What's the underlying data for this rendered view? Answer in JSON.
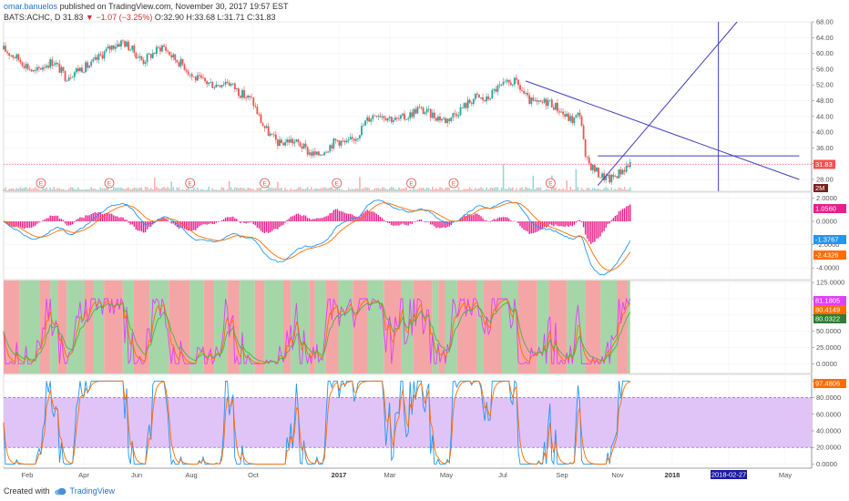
{
  "header": {
    "author": "omar.banuelos",
    "published": "published on TradingView.com, November 30, 2017 19:57 EST",
    "symbol": "BATS:ACHC, D",
    "last": "31.83",
    "change": "−1.07 (−3.25%)",
    "ohlc": "O:32.90 H:33.68 L:31.71 C:31.83"
  },
  "footer": {
    "created_with": "Created with",
    "brand": "TradingView"
  },
  "colors": {
    "up": "#26a69a",
    "down": "#ef5350",
    "trend": "#3f3fbf",
    "macd_line": "#2196f3",
    "macd_signal": "#ff6d00",
    "macd_hist": "#e91e8c",
    "rsi_line": "#e040fb",
    "stoch_k": "#2196f3",
    "stoch_d": "#ff6d00",
    "band_red": "#f4a6a6",
    "band_green": "#a5d6a7",
    "stoch_band": "#e1c4f7"
  },
  "chart_data": [
    {
      "type": "candlestick",
      "name": "BATS:ACHC, D",
      "y_ticks": [
        "68.00",
        "64.00",
        "60.00",
        "56.00",
        "52.00",
        "48.00",
        "44.00",
        "40.00",
        "36.00",
        "32.00",
        "28.00"
      ],
      "ylim": [
        25,
        68
      ],
      "x_labels": [
        "Feb",
        "Apr",
        "Jun",
        "Aug",
        "Oct",
        "2017",
        "Mar",
        "May",
        "Jul",
        "Sep",
        "Nov",
        "2018",
        "2018-02-27",
        "May"
      ],
      "close_path": [
        {
          "t": 0,
          "v": 61
        },
        {
          "t": 10,
          "v": 59
        },
        {
          "t": 18,
          "v": 57
        },
        {
          "t": 25,
          "v": 55
        },
        {
          "t": 32,
          "v": 57
        },
        {
          "t": 40,
          "v": 58
        },
        {
          "t": 50,
          "v": 54
        },
        {
          "t": 60,
          "v": 56
        },
        {
          "t": 70,
          "v": 57
        },
        {
          "t": 80,
          "v": 60
        },
        {
          "t": 88,
          "v": 62
        },
        {
          "t": 96,
          "v": 63
        },
        {
          "t": 103,
          "v": 61
        },
        {
          "t": 112,
          "v": 58
        },
        {
          "t": 120,
          "v": 60
        },
        {
          "t": 128,
          "v": 62
        },
        {
          "t": 136,
          "v": 59
        },
        {
          "t": 145,
          "v": 57
        },
        {
          "t": 152,
          "v": 54
        },
        {
          "t": 160,
          "v": 53
        },
        {
          "t": 170,
          "v": 52
        },
        {
          "t": 180,
          "v": 53
        },
        {
          "t": 190,
          "v": 50
        },
        {
          "t": 200,
          "v": 48
        },
        {
          "t": 208,
          "v": 42
        },
        {
          "t": 215,
          "v": 39
        },
        {
          "t": 222,
          "v": 37
        },
        {
          "t": 230,
          "v": 38
        },
        {
          "t": 238,
          "v": 37
        },
        {
          "t": 245,
          "v": 35
        },
        {
          "t": 252,
          "v": 34
        },
        {
          "t": 260,
          "v": 36
        },
        {
          "t": 268,
          "v": 38
        },
        {
          "t": 276,
          "v": 37
        },
        {
          "t": 284,
          "v": 39
        },
        {
          "t": 292,
          "v": 43
        },
        {
          "t": 300,
          "v": 45
        },
        {
          "t": 308,
          "v": 44
        },
        {
          "t": 316,
          "v": 43
        },
        {
          "t": 325,
          "v": 44
        },
        {
          "t": 333,
          "v": 46
        },
        {
          "t": 340,
          "v": 45
        },
        {
          "t": 348,
          "v": 44
        },
        {
          "t": 356,
          "v": 43
        },
        {
          "t": 364,
          "v": 45
        },
        {
          "t": 372,
          "v": 47
        },
        {
          "t": 380,
          "v": 49
        },
        {
          "t": 388,
          "v": 48
        },
        {
          "t": 396,
          "v": 51
        },
        {
          "t": 404,
          "v": 52
        },
        {
          "t": 410,
          "v": 53
        },
        {
          "t": 416,
          "v": 51
        },
        {
          "t": 422,
          "v": 48
        },
        {
          "t": 430,
          "v": 47
        },
        {
          "t": 438,
          "v": 48
        },
        {
          "t": 446,
          "v": 46
        },
        {
          "t": 452,
          "v": 44
        },
        {
          "t": 458,
          "v": 43
        },
        {
          "t": 464,
          "v": 45
        },
        {
          "t": 468,
          "v": 33
        },
        {
          "t": 474,
          "v": 31
        },
        {
          "t": 480,
          "v": 29
        },
        {
          "t": 488,
          "v": 28
        },
        {
          "t": 496,
          "v": 30
        },
        {
          "t": 504,
          "v": 32
        }
      ],
      "earnings_markers": [
        "E",
        "E",
        "E",
        "E",
        "E",
        "E",
        "E",
        "E"
      ],
      "price_badge": "31.83",
      "volume_badge": "2M",
      "trendlines": [
        {
          "name": "down-trend",
          "from": {
            "t": 420,
            "v": 53
          },
          "to": {
            "t": 640,
            "v": 28
          }
        },
        {
          "name": "up-trend",
          "from": {
            "t": 478,
            "v": 26.5
          },
          "to": {
            "t": 590,
            "v": 68
          }
        },
        {
          "name": "horizontal",
          "from": {
            "t": 478,
            "v": 34
          },
          "to": {
            "t": 640,
            "v": 34
          }
        },
        {
          "name": "vertical",
          "from": {
            "t": 575,
            "v": 25
          },
          "to": {
            "t": 575,
            "v": 68
          }
        }
      ]
    },
    {
      "type": "line",
      "name": "MACD",
      "y_ticks": [
        "2.0000",
        "0.0000",
        "-2.0000",
        "-4.0000"
      ],
      "ylim": [
        -5,
        2.5
      ],
      "badges": [
        "1.0560",
        "-1.3767",
        "-2.4326"
      ]
    },
    {
      "type": "line",
      "name": "RSI",
      "y_ticks": [
        "125.0000",
        "100.0000",
        "75.0000",
        "50.0000",
        "25.0000",
        "0.0000"
      ],
      "ylim": [
        -15,
        128
      ],
      "badges": [
        "81.1805",
        "80.4149",
        "80.0322"
      ]
    },
    {
      "type": "line",
      "name": "Stochastic",
      "y_ticks": [
        "100.0000",
        "80.0000",
        "60.0000",
        "40.0000",
        "20.0000",
        "0.0000"
      ],
      "ylim": [
        -5,
        108
      ],
      "band": [
        20,
        80
      ],
      "badges": [
        "97.4806"
      ]
    }
  ]
}
